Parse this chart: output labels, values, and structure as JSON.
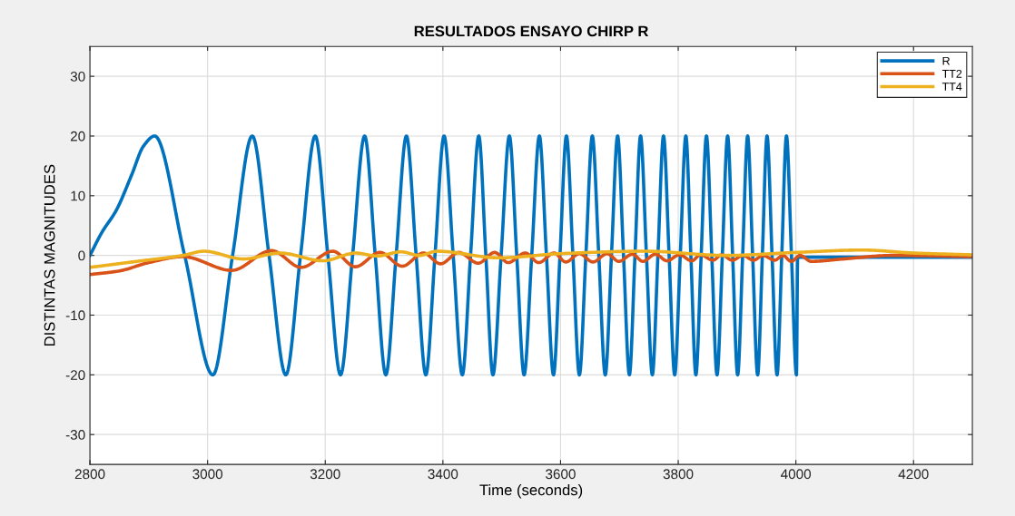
{
  "chart_data": {
    "type": "line",
    "title": "RESULTADOS ENSAYO CHIRP R",
    "xlabel": "Time (seconds)",
    "ylabel": "DISTINTAS MAGNITUDES",
    "xlim": [
      2800,
      4300
    ],
    "xticks": [
      2800,
      3000,
      3200,
      3400,
      3600,
      3800,
      4000,
      4200
    ],
    "ylim": [
      -35,
      35
    ],
    "yticks": [
      -30,
      -20,
      -10,
      0,
      10,
      20,
      30
    ],
    "grid": true,
    "legend": "top right",
    "marker": "none",
    "line_style": "solid",
    "series": [
      {
        "name": "R",
        "color": "#0072bd",
        "x": [
          2800,
          2820,
          2845,
          2871,
          2891,
          2910,
          2961,
          3009,
          3042.5,
          3076,
          3104.5,
          3133,
          3158,
          3183,
          3204.5,
          3226,
          3246.5,
          3267,
          3285,
          3303,
          3320.5,
          3338,
          3354.5,
          3371,
          3386.5,
          3402,
          3417.5,
          3433,
          3447,
          3461,
          3473,
          3485,
          3499,
          3513,
          3525.5,
          3538,
          3551,
          3564,
          3576,
          3588,
          3599,
          3610,
          3621,
          3632,
          3643,
          3654,
          3665,
          3676,
          3686.5,
          3697,
          3707,
          3717,
          3726.5,
          3736,
          3746,
          3756,
          3765.5,
          3775,
          3784.5,
          3794,
          3803.5,
          3813,
          3821.5,
          3830,
          3839,
          3848,
          3857,
          3866,
          3875,
          3884,
          3892.5,
          3901,
          3909.5,
          3918,
          3926.5,
          3935,
          3943,
          3951,
          3959.5,
          3968,
          3976,
          3984,
          3992.5,
          4001,
          4003,
          4300
        ],
        "values": [
          0,
          3.8,
          7.6,
          13.5,
          18.3,
          20,
          0,
          -20,
          0,
          20,
          0,
          -20,
          0,
          20,
          0,
          -20,
          0,
          20,
          0,
          -20,
          0,
          20,
          0,
          -20,
          0,
          20,
          0,
          -20,
          0,
          20,
          0,
          -20,
          0,
          20,
          0,
          -20,
          0,
          20,
          0,
          -20,
          0,
          20,
          0,
          -20,
          0,
          20,
          0,
          -20,
          0,
          20,
          0,
          -20,
          0,
          20,
          0,
          -20,
          0,
          20,
          0,
          -20,
          0,
          20,
          0,
          -20,
          0,
          20,
          0,
          -20,
          0,
          20,
          0,
          -20,
          0,
          20,
          0,
          -20,
          0,
          20,
          0,
          -20,
          0,
          20,
          0,
          -20,
          -0.3,
          -0.3
        ]
      },
      {
        "name": "TT2",
        "color": "#d95319",
        "x": [
          2800,
          2850,
          2900,
          2958,
          3041,
          3109,
          3159,
          3213,
          3251,
          3293,
          3331,
          3367,
          3396,
          3427,
          3460,
          3488,
          3511,
          3540,
          3563,
          3589,
          3609,
          3632,
          3655,
          3679,
          3699,
          3722,
          3740,
          3761,
          3781,
          3802,
          3823,
          3838,
          3859,
          3874,
          3892,
          3910,
          3928,
          3944,
          3964,
          3978,
          3992,
          4007,
          4026,
          4080,
          4164,
          4300
        ],
        "values": [
          -3.2,
          -2.6,
          -1.2,
          -0.2,
          -2.5,
          0.8,
          -2.0,
          0.7,
          -1.9,
          0.5,
          -1.8,
          0.4,
          -1.4,
          0.5,
          -1.3,
          0.5,
          -1.2,
          0.4,
          -1.2,
          0.4,
          -1.1,
          0.3,
          -1.1,
          0.3,
          -1.0,
          0.2,
          -1.0,
          0.2,
          -0.9,
          0.1,
          -0.9,
          0.1,
          -0.8,
          0.1,
          -0.8,
          0,
          -0.8,
          0,
          -0.8,
          0,
          -1.0,
          0,
          -1.0,
          -0.6,
          0,
          -0.2
        ]
      },
      {
        "name": "TT4",
        "color": "#edb120",
        "x": [
          2800,
          2880,
          2958,
          2994,
          3061,
          3123,
          3196,
          3252,
          3288,
          3329,
          3360,
          3390,
          3496,
          3600,
          3743,
          3882,
          4000,
          4113,
          4200,
          4300
        ],
        "values": [
          -2.0,
          -1.0,
          0,
          0.7,
          -0.6,
          0.4,
          -0.9,
          0.4,
          -0.1,
          0.6,
          0,
          0.7,
          -0.4,
          0.3,
          0.7,
          0,
          0.5,
          0.9,
          0.4,
          0.1
        ]
      }
    ]
  }
}
